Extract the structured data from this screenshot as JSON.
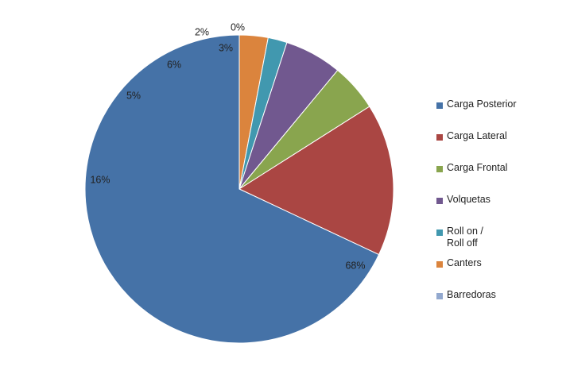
{
  "chart_data": {
    "type": "pie",
    "title": "",
    "categories": [
      "Carga Posterior",
      "Carga Lateral",
      "Carga Frontal",
      "Volquetas",
      "Roll on /\nRoll off",
      "Canters",
      "Barredoras"
    ],
    "values": [
      68,
      16,
      5,
      6,
      2,
      3,
      0
    ],
    "labels": [
      "68%",
      "16%",
      "5%",
      "6%",
      "2%",
      "3%",
      "0%"
    ],
    "colors": [
      "#4572A7",
      "#AA4643",
      "#89A54E",
      "#71588F",
      "#4198AF",
      "#DB843D",
      "#93A9CF"
    ],
    "legend": "right",
    "start_angle": "top, clockwise"
  }
}
